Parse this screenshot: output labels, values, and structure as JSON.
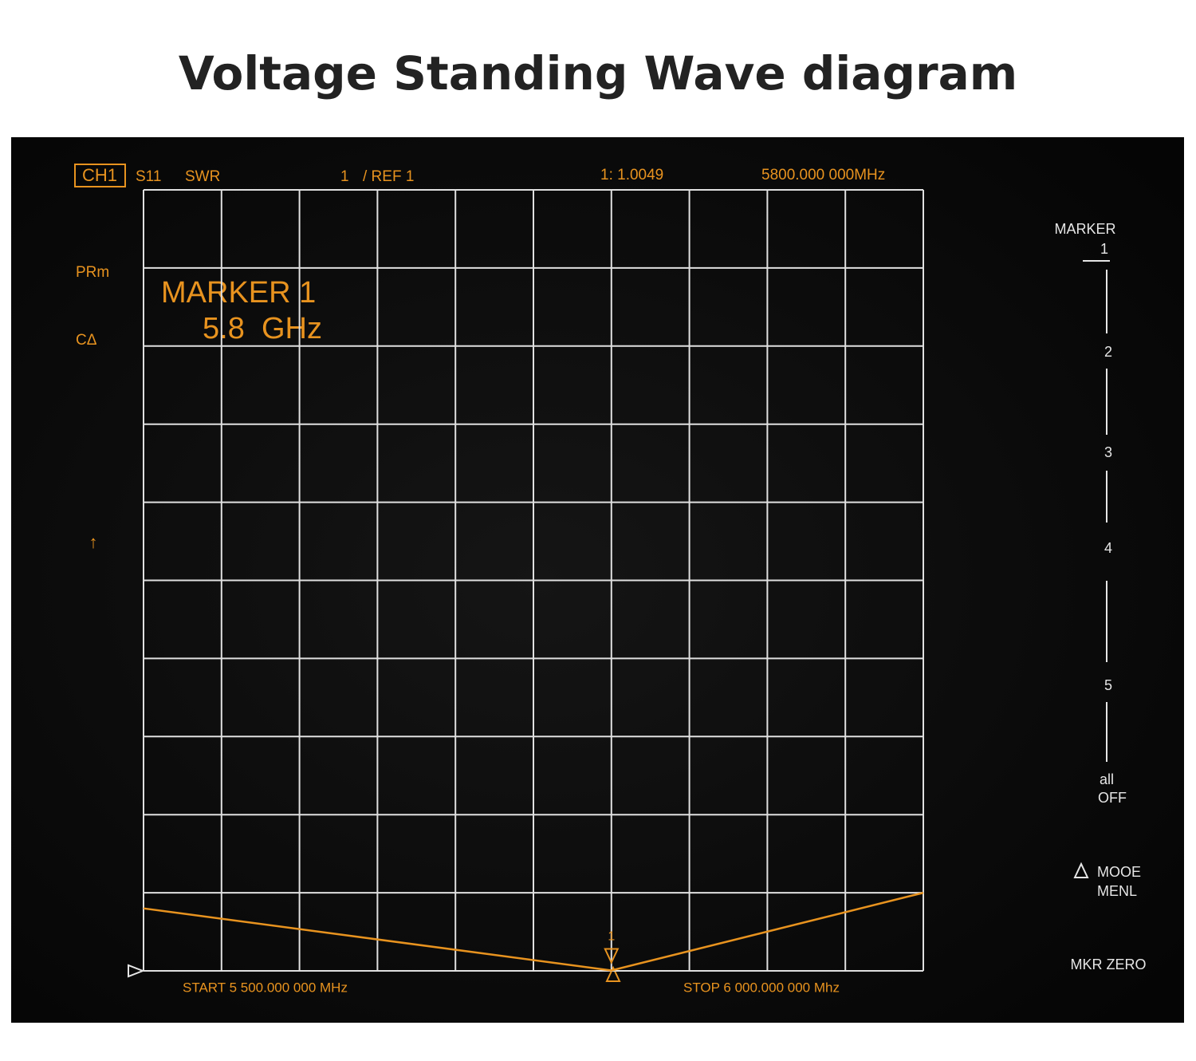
{
  "title": "Voltage Standing Wave diagram",
  "screen": {
    "channel": "CH1",
    "param": "S11",
    "format": "SWR",
    "scale": "1",
    "ref": "/ REF 1",
    "marker_readout": "1: 1.0049",
    "marker_freq": "5800.000 000MHz",
    "left_labels": [
      "PRm",
      "CΔ",
      "↑"
    ],
    "marker_annotation": [
      "MARKER 1",
      "5.8  GHz"
    ],
    "marker_label": "1",
    "start": "START 5 500.000 000 MHz",
    "stop": "STOP 6 000.000 000 Mhz"
  },
  "menu": {
    "title": "MARKER",
    "items": [
      "1",
      "2",
      "3",
      "4",
      "5"
    ],
    "all_off": [
      "all",
      "OFF"
    ],
    "mode": [
      "MOOE",
      "MENL"
    ],
    "mkr_zero": "MKR ZERO"
  },
  "chart_data": {
    "type": "line",
    "x": [
      5500,
      5800,
      6000
    ],
    "values": [
      1.8,
      1.0049,
      2.0
    ],
    "color": "#e8931f",
    "xlim": [
      5500,
      6000
    ],
    "xticks": [
      5500,
      5550,
      5600,
      5650,
      5700,
      5750,
      5800,
      5850,
      5900,
      5950,
      6000
    ],
    "ylim": [
      1,
      11
    ],
    "yticks": [
      1,
      2,
      3,
      4,
      5,
      6,
      7,
      8,
      9,
      10,
      11
    ],
    "grid": true
  }
}
